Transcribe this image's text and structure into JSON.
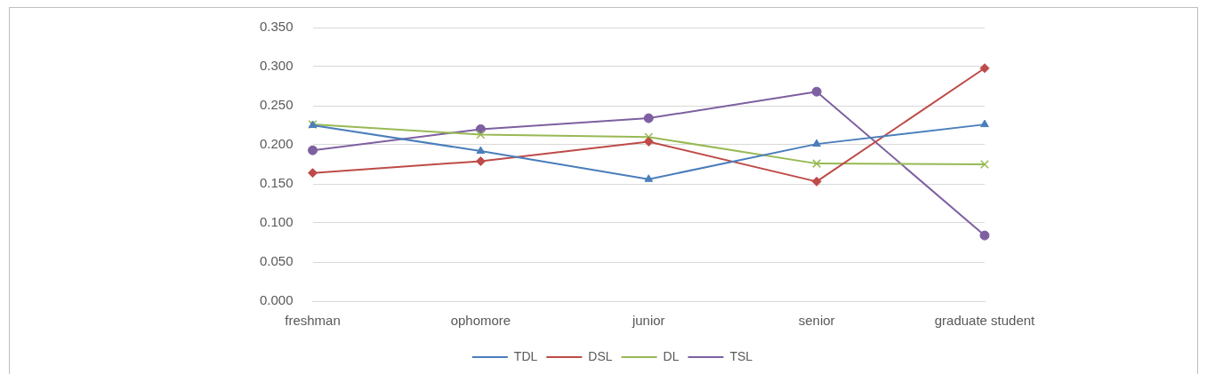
{
  "chart_data": {
    "type": "line",
    "categories": [
      "freshman",
      "ophomore",
      "junior",
      "senior",
      "graduate student"
    ],
    "series": [
      {
        "name": "TDL",
        "color": "#4a7ebb",
        "marker": "triangle",
        "values": [
          0.225,
          0.192,
          0.156,
          0.201,
          0.226
        ]
      },
      {
        "name": "DSL",
        "color": "#be4b48",
        "marker": "diamond",
        "values": [
          0.164,
          0.179,
          0.204,
          0.153,
          0.298
        ]
      },
      {
        "name": "DL",
        "color": "#98b954",
        "marker": "cross",
        "values": [
          0.226,
          0.213,
          0.21,
          0.176,
          0.175
        ]
      },
      {
        "name": "TSL",
        "color": "#7d60a0",
        "marker": "circle",
        "values": [
          0.193,
          0.22,
          0.234,
          0.268,
          0.084
        ]
      }
    ],
    "ylim": [
      0,
      0.35
    ],
    "yticks": [
      {
        "value": 0,
        "label": "0.000"
      },
      {
        "value": 0.05,
        "label": "0.050"
      },
      {
        "value": 0.1,
        "label": "0.100"
      },
      {
        "value": 0.15,
        "label": "0.150"
      },
      {
        "value": 0.2,
        "label": "0.200"
      },
      {
        "value": 0.25,
        "label": "0.250"
      },
      {
        "value": 0.3,
        "label": "0.300"
      },
      {
        "value": 0.35,
        "label": "0.350"
      }
    ],
    "grid": "y",
    "legend": "bottom"
  }
}
